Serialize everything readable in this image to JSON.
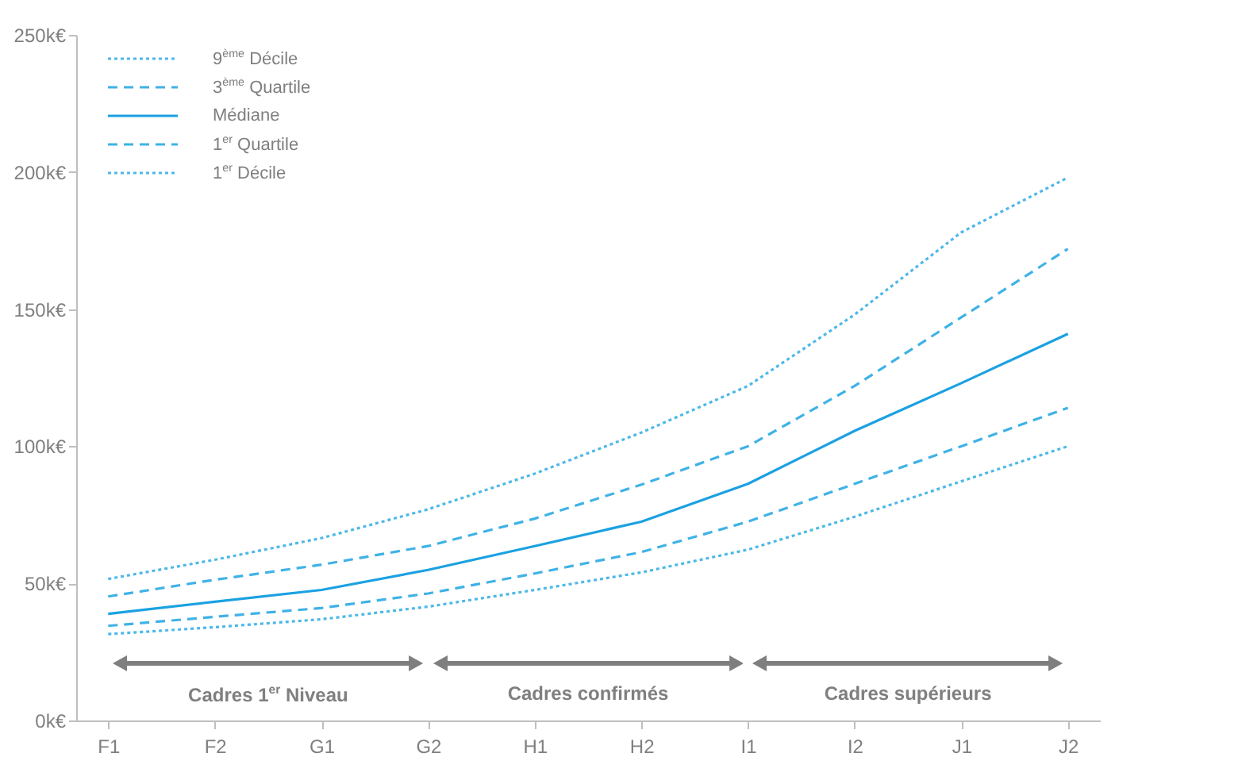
{
  "chart_data": {
    "type": "line",
    "categories": [
      "F1",
      "F2",
      "G1",
      "G2",
      "H1",
      "H2",
      "I1",
      "I2",
      "J1",
      "J2"
    ],
    "ylim": [
      0,
      250
    ],
    "yticks": [
      {
        "value": 0,
        "label": "0k€"
      },
      {
        "value": 50,
        "label": "50k€"
      },
      {
        "value": 100,
        "label": "100k€"
      },
      {
        "value": 150,
        "label": "150k€"
      },
      {
        "value": 200,
        "label": "200k€"
      },
      {
        "value": 250,
        "label": "250k€"
      }
    ],
    "grid": false,
    "legend": "top left",
    "series": [
      {
        "name": "9$^{ème}$ Décile",
        "color": "#4db8e8",
        "line_style": "dotted",
        "values": [
          51.6,
          58.6,
          66.5,
          77,
          90,
          105,
          122,
          148,
          178,
          198
        ]
      },
      {
        "name": "3$^{ème}$ Quartile",
        "color": "#3fb2e6",
        "line_style": "dashed",
        "values": [
          45.2,
          51.3,
          56.8,
          63.6,
          73.6,
          86,
          100,
          122,
          147,
          172
        ]
      },
      {
        "name": "Médiane",
        "color": "#1ba1e2",
        "line_style": "solid",
        "values": [
          38.9,
          43.3,
          47.6,
          54.9,
          63.6,
          72.5,
          86.3,
          105.6,
          123,
          141
        ]
      },
      {
        "name": "1$^{er}$ Quartile",
        "color": "#3fb2e6",
        "line_style": "dashed",
        "values": [
          34.5,
          37.8,
          41,
          46.3,
          53.6,
          61.4,
          72.5,
          86.3,
          100,
          114
        ]
      },
      {
        "name": "1$^{er}$ Décile",
        "color": "#4db8e8",
        "line_style": "dotted",
        "values": [
          31.5,
          34,
          36.9,
          41.5,
          47.6,
          54,
          62.3,
          74.3,
          87.2,
          100
        ]
      }
    ],
    "annotations": [
      "Cadres 1$^{er}$ Niveau",
      "Cadres confirmés",
      "Cadres supérieurs"
    ]
  }
}
